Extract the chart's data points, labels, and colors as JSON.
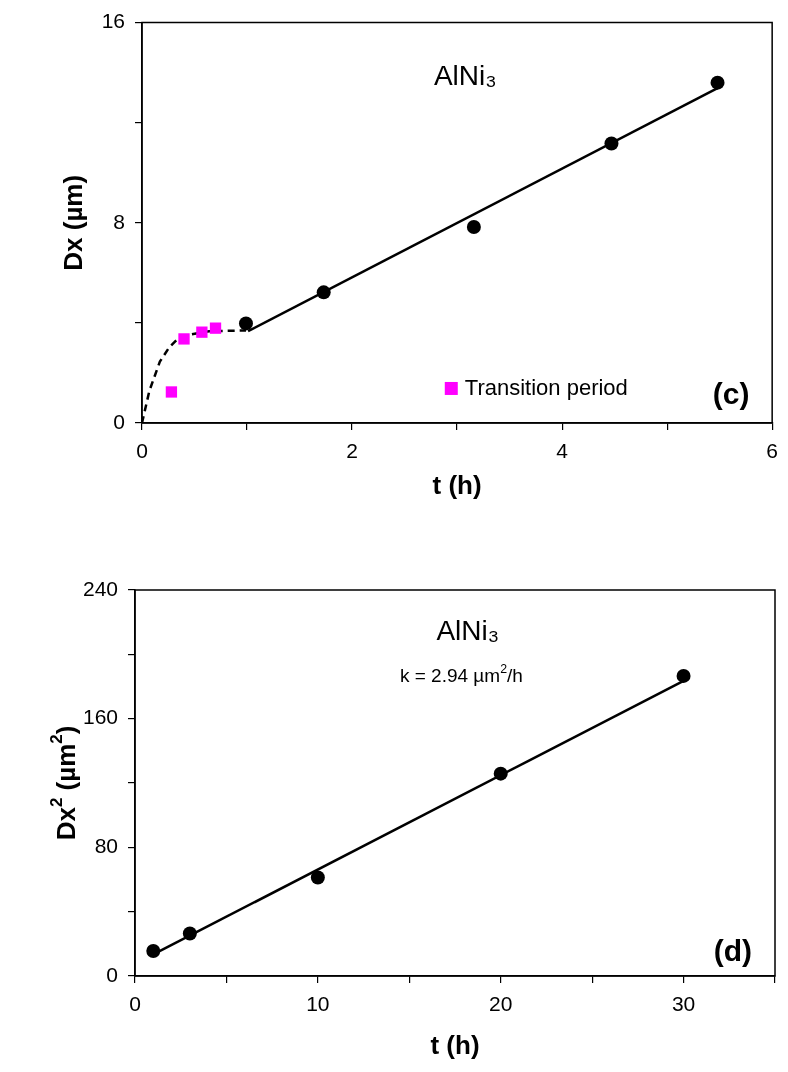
{
  "chart_data": [
    {
      "type": "scatter",
      "xlabel": "t (h)",
      "ylabel": "Dx (µm)",
      "annotations": [
        "AlNi₃",
        "(c)"
      ],
      "xlim": [
        0,
        6
      ],
      "xticks": [
        0,
        {
          "value": 1,
          "label": null
        },
        2,
        {
          "value": 3,
          "label": null
        },
        4,
        {
          "value": 5,
          "label": null
        },
        6
      ],
      "ylim": [
        0,
        16
      ],
      "yticks": [
        0,
        {
          "value": 4,
          "label": null
        },
        8,
        {
          "value": 12,
          "label": null
        },
        16
      ],
      "grid": false,
      "legend": "bottom right",
      "series": [
        {
          "type": "line",
          "color": "#000000",
          "marker": "none",
          "line_style": "dashed",
          "x": [
            0,
            0.07,
            0.17,
            0.26,
            0.33,
            0.45,
            0.64,
            0.99
          ],
          "values": [
            0,
            1.28,
            2.45,
            3.03,
            3.32,
            3.53,
            3.67,
            3.7
          ]
        },
        {
          "type": "line",
          "color": "#000000",
          "marker": "none",
          "line_style": "solid",
          "x": [
            1.01,
            5.48
          ],
          "values": [
            3.67,
            13.38
          ]
        },
        {
          "type": "scatter",
          "name": "Transition period",
          "color": "#ff00ff",
          "marker": "square",
          "x": [
            0.28,
            0.4,
            0.57,
            0.7
          ],
          "values": [
            1.24,
            3.36,
            3.63,
            3.79
          ]
        },
        {
          "type": "scatter",
          "color": "#000000",
          "marker": "circle",
          "x": [
            0.99,
            1.73,
            3.16,
            4.47,
            5.48
          ],
          "values": [
            3.98,
            5.22,
            7.83,
            11.17,
            13.6
          ]
        }
      ]
    },
    {
      "type": "scatter",
      "xlabel": "t (h)",
      "ylabel": "Dx$^{2}$ (µm$^{2}$)",
      "annotations": [
        "AlNi₃",
        "k = 2.94 µm$^{2}$/h",
        "(d)"
      ],
      "xlim": [
        0,
        35
      ],
      "xticks": [
        0,
        {
          "value": 5,
          "label": null
        },
        10,
        {
          "value": 15,
          "label": null
        },
        20,
        {
          "value": 25,
          "label": null
        },
        30,
        {
          "value": 35,
          "label": null
        }
      ],
      "ylim": [
        0,
        240
      ],
      "yticks": [
        0,
        {
          "value": 40,
          "label": null
        },
        80,
        {
          "value": 120,
          "label": null
        },
        160,
        {
          "value": 200,
          "label": null
        },
        240
      ],
      "grid": false,
      "legend": false,
      "series": [
        {
          "type": "line",
          "color": "#000000",
          "marker": "none",
          "line_style": "solid",
          "x": [
            1,
            30
          ],
          "values": [
            13.4,
            183.5
          ]
        },
        {
          "type": "scatter",
          "color": "#000000",
          "marker": "circle",
          "x": [
            1,
            3,
            10,
            20,
            30
          ],
          "values": [
            15.5,
            26.4,
            61.2,
            125.8,
            186.6
          ]
        }
      ]
    }
  ]
}
